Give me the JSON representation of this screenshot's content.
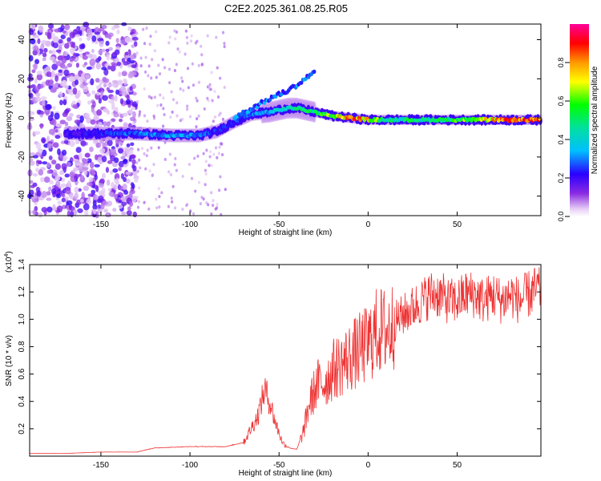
{
  "title": "C2E2.2025.361.08.25.R05",
  "chart_data": [
    {
      "type": "heatmap",
      "name": "spectrogram",
      "xlabel": "Height of straight line (km)",
      "ylabel": "Frequency (Hz)",
      "xlim": [
        -190,
        97
      ],
      "ylim": [
        -50,
        48
      ],
      "xticks": [
        -150,
        -100,
        -50,
        0,
        50
      ],
      "yticks": [
        -40,
        -20,
        0,
        20,
        40
      ],
      "colorbar": {
        "label": "Normalized spectral amplitude",
        "range": [
          0,
          1
        ],
        "ticks": [
          "0.0",
          "0.2",
          "0.4",
          "0.6",
          "0.8"
        ],
        "tick_values": [
          0.0,
          0.2,
          0.4,
          0.6,
          0.8
        ]
      },
      "ridge": {
        "description_points_x": [
          -170,
          -150,
          -130,
          -110,
          -95,
          -85,
          -75,
          -65,
          -55,
          -45,
          -40,
          -30,
          -20,
          -10,
          0,
          10,
          30,
          50,
          70,
          97
        ],
        "frequency_y": [
          -8,
          -8,
          -8,
          -9,
          -9,
          -7,
          -2,
          2,
          3,
          5,
          5,
          3,
          1,
          0,
          -1,
          -1,
          -1,
          -1,
          -1,
          -1
        ],
        "amplitude": [
          0.2,
          0.25,
          0.3,
          0.35,
          0.3,
          0.25,
          0.25,
          0.3,
          0.35,
          0.45,
          0.55,
          0.5,
          0.7,
          0.9,
          0.8,
          0.5,
          0.5,
          0.6,
          0.8,
          0.95
        ]
      }
    },
    {
      "type": "line",
      "name": "snr",
      "xlabel": "Height of straight line (km)",
      "ylabel": "SNR (10 * v/v)",
      "multiplier_base": "(x10",
      "multiplier_exp": "4",
      "multiplier_end": ")",
      "xlim": [
        -190,
        97
      ],
      "ylim": [
        0,
        1.4
      ],
      "xticks": [
        -150,
        -100,
        -50,
        0,
        50
      ],
      "yticks": [
        "0.2",
        "0.4",
        "0.6",
        "0.8",
        "1.0",
        "1.2",
        "1.4"
      ],
      "ytick_values": [
        0.2,
        0.4,
        0.6,
        0.8,
        1.0,
        1.2,
        1.4
      ],
      "series": [
        {
          "name": "SNR",
          "color": "#ee3333",
          "x": [
            -190,
            -170,
            -150,
            -130,
            -120,
            -100,
            -80,
            -70,
            -62,
            -58,
            -55,
            -52,
            -48,
            -44,
            -40,
            -36,
            -33,
            -30,
            -28,
            -25,
            -22,
            -20,
            -15,
            -10,
            -5,
            0,
            5,
            10,
            15,
            20,
            25,
            30,
            35,
            40,
            45,
            50,
            55,
            60,
            65,
            70,
            75,
            80,
            85,
            90,
            97
          ],
          "values": [
            0.02,
            0.02,
            0.03,
            0.03,
            0.06,
            0.07,
            0.07,
            0.1,
            0.3,
            0.5,
            0.4,
            0.25,
            0.1,
            0.06,
            0.05,
            0.2,
            0.4,
            0.5,
            0.55,
            0.55,
            0.6,
            0.65,
            0.7,
            0.75,
            0.8,
            0.85,
            0.95,
            0.95,
            1.0,
            1.05,
            1.1,
            1.15,
            1.2,
            1.2,
            1.15,
            1.15,
            1.2,
            1.2,
            1.15,
            1.2,
            1.15,
            1.2,
            1.15,
            1.2,
            1.25
          ]
        }
      ]
    }
  ]
}
